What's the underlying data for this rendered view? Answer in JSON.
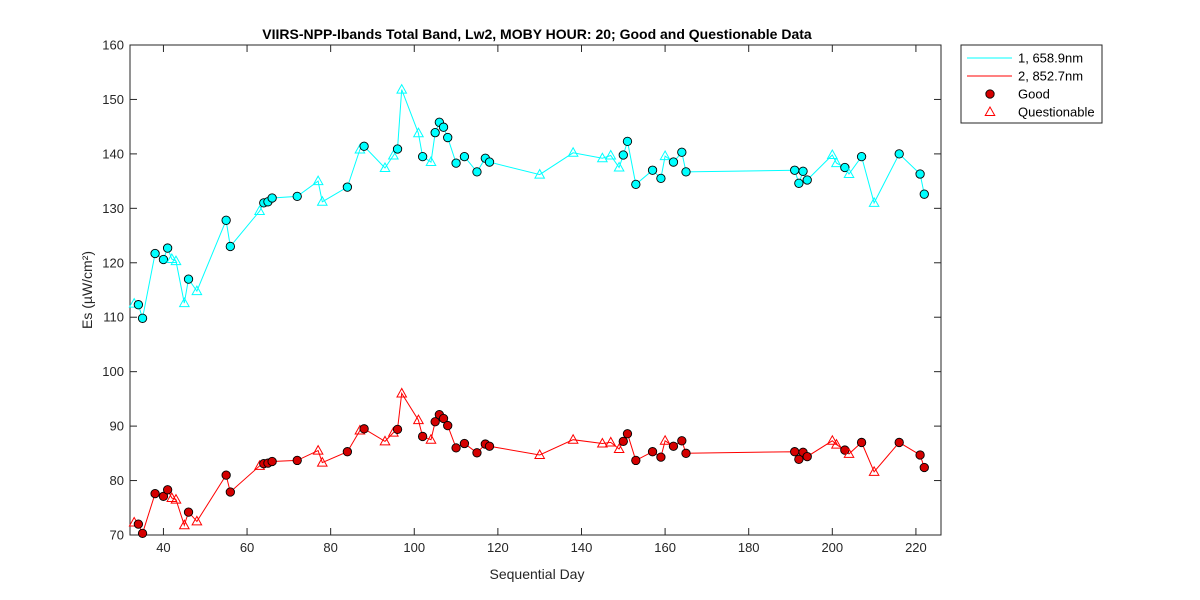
{
  "chart_data": {
    "type": "line",
    "title": "VIIRS-NPP-Ibands Total Band,  Lw2, MOBY HOUR: 20;  Good and Questionable Data",
    "xlabel": "Sequential Day",
    "ylabel": "Es (µW/cm²)",
    "xlim": [
      32,
      226
    ],
    "ylim": [
      70,
      160
    ],
    "xticks": [
      40,
      60,
      80,
      100,
      120,
      140,
      160,
      180,
      200,
      220
    ],
    "yticks": [
      70,
      80,
      90,
      100,
      110,
      120,
      130,
      140,
      150,
      160
    ],
    "grid": false,
    "legend_position": "outside-top-right",
    "series": [
      {
        "name": "1, 658.9nm",
        "color": "#00FFFF",
        "marker_fill": "#00FFFF",
        "points": [
          [
            33,
            112.5,
            "q"
          ],
          [
            34,
            112.3,
            "g"
          ],
          [
            35,
            109.8,
            "g"
          ],
          [
            38,
            121.7,
            "g"
          ],
          [
            40,
            120.6,
            "g"
          ],
          [
            41,
            122.7,
            "g"
          ],
          [
            42,
            120.7,
            "q"
          ],
          [
            43,
            120.3,
            "q"
          ],
          [
            45,
            112.6,
            "q"
          ],
          [
            46,
            117.0,
            "g"
          ],
          [
            48,
            114.8,
            "q"
          ],
          [
            55,
            127.8,
            "g"
          ],
          [
            56,
            123.0,
            "g"
          ],
          [
            63,
            129.5,
            "q"
          ],
          [
            64,
            131.0,
            "g"
          ],
          [
            65,
            131.2,
            "g"
          ],
          [
            66,
            131.9,
            "g"
          ],
          [
            72,
            132.2,
            "g"
          ],
          [
            77,
            135.0,
            "q"
          ],
          [
            78,
            131.2,
            "q"
          ],
          [
            84,
            133.9,
            "g"
          ],
          [
            87,
            140.8,
            "q"
          ],
          [
            88,
            141.4,
            "g"
          ],
          [
            93,
            137.4,
            "q"
          ],
          [
            95,
            139.7,
            "q"
          ],
          [
            96,
            140.9,
            "g"
          ],
          [
            97,
            151.8,
            "q"
          ],
          [
            101,
            143.8,
            "q"
          ],
          [
            102,
            139.5,
            "g"
          ],
          [
            104,
            138.5,
            "q"
          ],
          [
            105,
            143.9,
            "g"
          ],
          [
            106,
            145.8,
            "g"
          ],
          [
            107,
            144.9,
            "g"
          ],
          [
            108,
            143.0,
            "g"
          ],
          [
            110,
            138.3,
            "g"
          ],
          [
            112,
            139.5,
            "g"
          ],
          [
            115,
            136.7,
            "g"
          ],
          [
            117,
            139.2,
            "g"
          ],
          [
            118,
            138.5,
            "g"
          ],
          [
            130,
            136.2,
            "q"
          ],
          [
            138,
            140.2,
            "q"
          ],
          [
            145,
            139.2,
            "q"
          ],
          [
            147,
            139.7,
            "q"
          ],
          [
            149,
            137.5,
            "q"
          ],
          [
            150,
            139.8,
            "g"
          ],
          [
            151,
            142.3,
            "g"
          ],
          [
            153,
            134.4,
            "g"
          ],
          [
            157,
            137.0,
            "g"
          ],
          [
            159,
            135.5,
            "g"
          ],
          [
            160,
            139.6,
            "q"
          ],
          [
            162,
            138.5,
            "g"
          ],
          [
            164,
            140.3,
            "g"
          ],
          [
            165,
            136.7,
            "g"
          ],
          [
            191,
            137.0,
            "g"
          ],
          [
            192,
            134.6,
            "g"
          ],
          [
            193,
            136.8,
            "g"
          ],
          [
            194,
            135.2,
            "g"
          ],
          [
            200,
            139.8,
            "q"
          ],
          [
            201,
            138.3,
            "q"
          ],
          [
            203,
            137.5,
            "g"
          ],
          [
            204,
            136.3,
            "q"
          ],
          [
            207,
            139.5,
            "g"
          ],
          [
            210,
            131.0,
            "q"
          ],
          [
            216,
            140.0,
            "g"
          ],
          [
            221,
            136.3,
            "g"
          ],
          [
            222,
            132.6,
            "g"
          ]
        ]
      },
      {
        "name": "2, 852.7nm",
        "color": "#FF0000",
        "marker_fill": "#D40000",
        "points": [
          [
            33,
            72.3,
            "q"
          ],
          [
            34,
            72.0,
            "g"
          ],
          [
            35,
            70.3,
            "g"
          ],
          [
            38,
            77.6,
            "g"
          ],
          [
            40,
            77.1,
            "g"
          ],
          [
            41,
            78.3,
            "g"
          ],
          [
            42,
            76.8,
            "q"
          ],
          [
            43,
            76.5,
            "q"
          ],
          [
            45,
            71.8,
            "q"
          ],
          [
            46,
            74.2,
            "g"
          ],
          [
            48,
            72.5,
            "q"
          ],
          [
            55,
            81.0,
            "g"
          ],
          [
            56,
            77.9,
            "g"
          ],
          [
            63,
            82.7,
            "q"
          ],
          [
            64,
            83.1,
            "g"
          ],
          [
            65,
            83.2,
            "g"
          ],
          [
            66,
            83.5,
            "g"
          ],
          [
            72,
            83.7,
            "g"
          ],
          [
            77,
            85.5,
            "q"
          ],
          [
            78,
            83.3,
            "q"
          ],
          [
            84,
            85.3,
            "g"
          ],
          [
            87,
            89.2,
            "q"
          ],
          [
            88,
            89.5,
            "g"
          ],
          [
            93,
            87.2,
            "q"
          ],
          [
            95,
            88.8,
            "q"
          ],
          [
            96,
            89.4,
            "g"
          ],
          [
            97,
            96.0,
            "q"
          ],
          [
            101,
            91.1,
            "q"
          ],
          [
            102,
            88.1,
            "g"
          ],
          [
            104,
            87.5,
            "q"
          ],
          [
            105,
            90.8,
            "g"
          ],
          [
            106,
            92.1,
            "g"
          ],
          [
            107,
            91.4,
            "g"
          ],
          [
            108,
            90.1,
            "g"
          ],
          [
            110,
            86.0,
            "g"
          ],
          [
            112,
            86.8,
            "g"
          ],
          [
            115,
            85.1,
            "g"
          ],
          [
            117,
            86.7,
            "g"
          ],
          [
            118,
            86.3,
            "g"
          ],
          [
            130,
            84.7,
            "q"
          ],
          [
            138,
            87.5,
            "q"
          ],
          [
            145,
            86.8,
            "q"
          ],
          [
            147,
            87.0,
            "q"
          ],
          [
            149,
            85.8,
            "q"
          ],
          [
            150,
            87.2,
            "g"
          ],
          [
            151,
            88.6,
            "g"
          ],
          [
            153,
            83.7,
            "g"
          ],
          [
            157,
            85.3,
            "g"
          ],
          [
            159,
            84.3,
            "g"
          ],
          [
            160,
            87.3,
            "q"
          ],
          [
            162,
            86.3,
            "g"
          ],
          [
            164,
            87.3,
            "g"
          ],
          [
            165,
            85.0,
            "g"
          ],
          [
            191,
            85.3,
            "g"
          ],
          [
            192,
            83.9,
            "g"
          ],
          [
            193,
            85.2,
            "g"
          ],
          [
            194,
            84.4,
            "g"
          ],
          [
            200,
            87.3,
            "q"
          ],
          [
            201,
            86.6,
            "q"
          ],
          [
            203,
            85.6,
            "g"
          ],
          [
            204,
            84.9,
            "q"
          ],
          [
            207,
            87.0,
            "g"
          ],
          [
            210,
            81.6,
            "q"
          ],
          [
            216,
            87.0,
            "g"
          ],
          [
            221,
            84.7,
            "g"
          ],
          [
            222,
            82.4,
            "g"
          ]
        ]
      }
    ],
    "legend": [
      {
        "label": "1, 658.9nm",
        "kind": "line",
        "color": "#00FFFF"
      },
      {
        "label": "2, 852.7nm",
        "kind": "line",
        "color": "#FF0000"
      },
      {
        "label": "Good",
        "kind": "filled-circle",
        "color": "#D40000"
      },
      {
        "label": "Questionable",
        "kind": "open-triangle",
        "color": "#FF0000"
      }
    ]
  }
}
